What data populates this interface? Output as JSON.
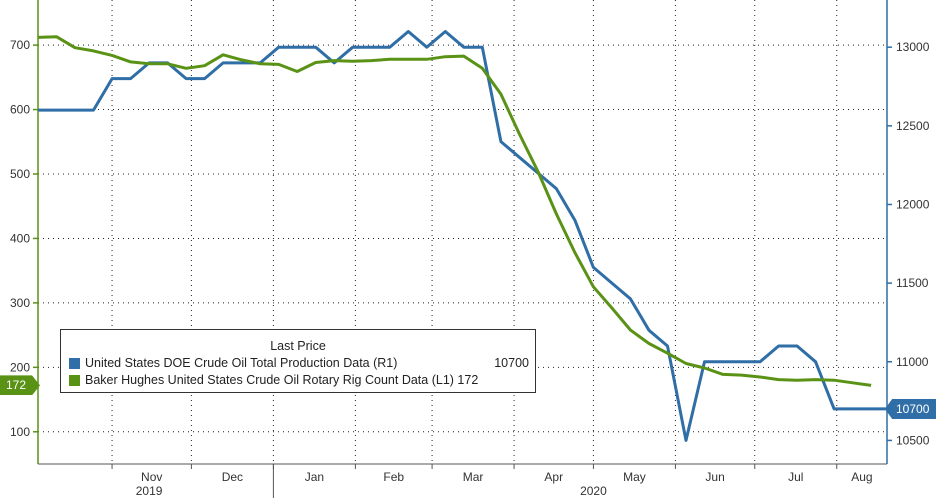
{
  "chart_data": {
    "type": "line",
    "title": "",
    "xlabel": "",
    "x_axis": {
      "month_labels": [
        {
          "label": "Nov",
          "date": "2019-11-01"
        },
        {
          "label": "Dec",
          "date": "2019-12-01"
        },
        {
          "label": "Jan",
          "date": "2020-01-01"
        },
        {
          "label": "Feb",
          "date": "2020-02-01"
        },
        {
          "label": "Mar",
          "date": "2020-03-01"
        },
        {
          "label": "Apr",
          "date": "2020-04-01"
        },
        {
          "label": "May",
          "date": "2020-05-01"
        },
        {
          "label": "Jun",
          "date": "2020-06-01"
        },
        {
          "label": "Jul",
          "date": "2020-07-01"
        },
        {
          "label": "Aug",
          "date": "2020-08-01"
        }
      ],
      "year_labels": [
        {
          "label": "2019",
          "date": "2019-11-15"
        },
        {
          "label": "2020",
          "date": "2020-05-01"
        }
      ],
      "range": [
        "2019-10-04",
        "2020-08-20"
      ]
    },
    "y_left": {
      "range": [
        50,
        770
      ],
      "ticks": [
        100,
        200,
        300,
        400,
        500,
        600,
        700
      ]
    },
    "y_right": {
      "range": [
        10350,
        13300
      ],
      "ticks": [
        10500,
        11000,
        11500,
        12000,
        12500,
        13000
      ]
    },
    "grid": true,
    "legend_position": "bottom-left",
    "legend_title": "Last Price",
    "series": [
      {
        "name": "United States DOE Crude Oil Total Production Data",
        "axis": "R1",
        "color": "#2f6ea6",
        "last_value": "10700",
        "points": [
          [
            "2019-10-04",
            12600
          ],
          [
            "2019-10-11",
            12600
          ],
          [
            "2019-10-18",
            12600
          ],
          [
            "2019-10-25",
            12600
          ],
          [
            "2019-11-01",
            12800
          ],
          [
            "2019-11-08",
            12800
          ],
          [
            "2019-11-15",
            12900
          ],
          [
            "2019-11-22",
            12900
          ],
          [
            "2019-11-29",
            12800
          ],
          [
            "2019-12-06",
            12800
          ],
          [
            "2019-12-13",
            12900
          ],
          [
            "2019-12-20",
            12900
          ],
          [
            "2019-12-27",
            12900
          ],
          [
            "2020-01-03",
            13000
          ],
          [
            "2020-01-10",
            13000
          ],
          [
            "2020-01-17",
            13000
          ],
          [
            "2020-01-24",
            12900
          ],
          [
            "2020-01-31",
            13000
          ],
          [
            "2020-02-07",
            13000
          ],
          [
            "2020-02-14",
            13000
          ],
          [
            "2020-02-21",
            13100
          ],
          [
            "2020-02-28",
            13000
          ],
          [
            "2020-03-06",
            13100
          ],
          [
            "2020-03-13",
            13000
          ],
          [
            "2020-03-20",
            13000
          ],
          [
            "2020-03-27",
            12400
          ],
          [
            "2020-04-03",
            12300
          ],
          [
            "2020-04-10",
            12200
          ],
          [
            "2020-04-17",
            12100
          ],
          [
            "2020-04-24",
            11900
          ],
          [
            "2020-05-01",
            11600
          ],
          [
            "2020-05-08",
            11500
          ],
          [
            "2020-05-15",
            11400
          ],
          [
            "2020-05-22",
            11200
          ],
          [
            "2020-05-29",
            11100
          ],
          [
            "2020-06-05",
            10500
          ],
          [
            "2020-06-12",
            11000
          ],
          [
            "2020-06-19",
            11000
          ],
          [
            "2020-06-26",
            11000
          ],
          [
            "2020-07-03",
            11000
          ],
          [
            "2020-07-10",
            11100
          ],
          [
            "2020-07-17",
            11100
          ],
          [
            "2020-07-24",
            11000
          ],
          [
            "2020-07-31",
            10700
          ],
          [
            "2020-08-07",
            10700
          ],
          [
            "2020-08-14",
            10700
          ],
          [
            "2020-08-20",
            10700
          ]
        ]
      },
      {
        "name": "Baker Hughes United States Crude Oil Rotary Rig Count Data",
        "axis": "L1",
        "color": "#5a9216",
        "last_value": "172",
        "points": [
          [
            "2019-10-04",
            712
          ],
          [
            "2019-10-11",
            713
          ],
          [
            "2019-10-18",
            696
          ],
          [
            "2019-10-25",
            691
          ],
          [
            "2019-11-01",
            684
          ],
          [
            "2019-11-08",
            674
          ],
          [
            "2019-11-15",
            671
          ],
          [
            "2019-11-22",
            671
          ],
          [
            "2019-11-29",
            664
          ],
          [
            "2019-12-06",
            668
          ],
          [
            "2019-12-13",
            685
          ],
          [
            "2019-12-20",
            677
          ],
          [
            "2019-12-27",
            671
          ],
          [
            "2020-01-03",
            670
          ],
          [
            "2020-01-10",
            659
          ],
          [
            "2020-01-17",
            673
          ],
          [
            "2020-01-24",
            676
          ],
          [
            "2020-01-31",
            675
          ],
          [
            "2020-02-07",
            676
          ],
          [
            "2020-02-14",
            678
          ],
          [
            "2020-02-21",
            678
          ],
          [
            "2020-02-28",
            678
          ],
          [
            "2020-03-06",
            682
          ],
          [
            "2020-03-13",
            683
          ],
          [
            "2020-03-20",
            664
          ],
          [
            "2020-03-27",
            624
          ],
          [
            "2020-04-03",
            562
          ],
          [
            "2020-04-10",
            504
          ],
          [
            "2020-04-17",
            438
          ],
          [
            "2020-04-24",
            378
          ],
          [
            "2020-05-01",
            325
          ],
          [
            "2020-05-08",
            292
          ],
          [
            "2020-05-15",
            258
          ],
          [
            "2020-05-22",
            237
          ],
          [
            "2020-05-29",
            222
          ],
          [
            "2020-06-05",
            206
          ],
          [
            "2020-06-12",
            199
          ],
          [
            "2020-06-19",
            189
          ],
          [
            "2020-06-26",
            188
          ],
          [
            "2020-07-03",
            185
          ],
          [
            "2020-07-10",
            181
          ],
          [
            "2020-07-17",
            180
          ],
          [
            "2020-07-24",
            181
          ],
          [
            "2020-07-31",
            180
          ],
          [
            "2020-08-07",
            176
          ],
          [
            "2020-08-14",
            172
          ]
        ]
      }
    ]
  }
}
